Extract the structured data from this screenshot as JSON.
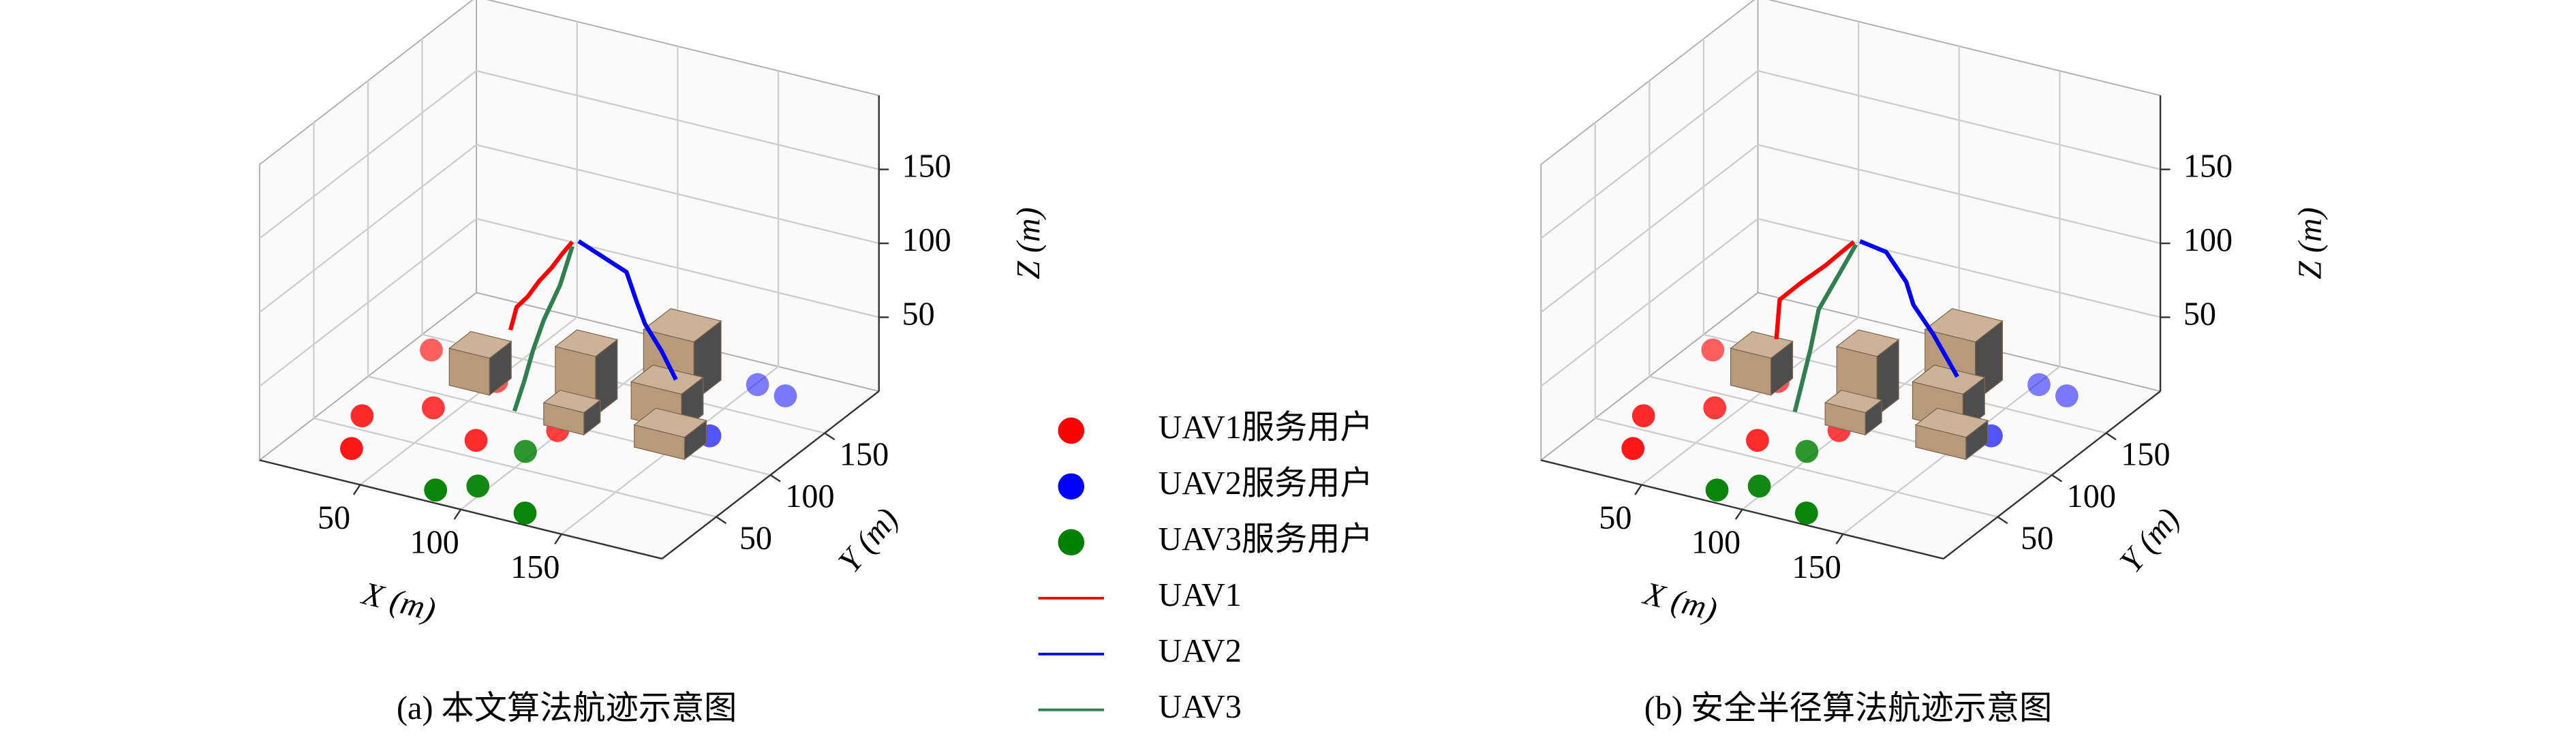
{
  "chart_data": [
    {
      "type": "scatter3d",
      "caption": "(a) 本文算法航迹示意图",
      "xlabel": "X (m)",
      "ylabel": "Y (m)",
      "zlabel": "Z (m)",
      "xlim": [
        0,
        200
      ],
      "ylim": [
        0,
        200
      ],
      "zlim": [
        0,
        200
      ],
      "xticks": [
        50,
        100,
        150
      ],
      "yticks": [
        50,
        100,
        150
      ],
      "zticks": [
        50,
        100,
        150
      ],
      "series": [
        {
          "name": "UAV1服务用户",
          "color": "#ff0000",
          "x": [
            11,
            17,
            40,
            29,
            72,
            98,
            51
          ],
          "y": [
            138,
            63,
            86,
            31,
            66,
            93,
            124
          ]
        },
        {
          "name": "UAV2服务用户",
          "color": "#0000ff",
          "x": [
            151,
            167,
            123,
            158
          ],
          "y": [
            179,
            175,
            151,
            122
          ]
        },
        {
          "name": "UAV3服务用户",
          "color": "#008000",
          "x": [
            96,
            81,
            95,
            126
          ],
          "y": [
            67,
            12,
            25,
            11
          ]
        },
        {
          "name": "UAV1",
          "color": "#ff0000",
          "x": [
            60,
            62,
            66,
            70,
            74,
            77,
            80
          ],
          "y": [
            120,
            122,
            125,
            128,
            132,
            136,
            140
          ],
          "z": [
            40,
            55,
            62,
            72,
            80,
            88,
            95
          ]
        },
        {
          "name": "UAV2",
          "color": "#0000ff",
          "x": [
            82,
            95,
            108,
            112,
            115,
            120,
            125
          ],
          "y": [
            142,
            140,
            138,
            140,
            142,
            148,
            152
          ],
          "z": [
            95,
            90,
            85,
            65,
            50,
            30,
            10
          ]
        },
        {
          "name": "UAV3",
          "color": "#2f7f4f",
          "x": [
            80,
            82,
            82,
            82,
            83,
            83
          ],
          "y": [
            140,
            125,
            110,
            100,
            90,
            81
          ],
          "z": [
            92,
            75,
            60,
            45,
            30,
            15
          ]
        }
      ],
      "obstacles": [
        {
          "x": 35,
          "y": 110,
          "w": 20,
          "d": 20,
          "h": 25
        },
        {
          "x": 110,
          "y": 150,
          "w": 25,
          "d": 25,
          "h": 40
        },
        {
          "x": 85,
          "y": 115,
          "w": 20,
          "d": 20,
          "h": 40
        },
        {
          "x": 90,
          "y": 95,
          "w": 20,
          "d": 15,
          "h": 15
        },
        {
          "x": 120,
          "y": 120,
          "w": 25,
          "d": 20,
          "h": 25
        },
        {
          "x": 135,
          "y": 95,
          "w": 25,
          "d": 20,
          "h": 15
        }
      ]
    },
    {
      "type": "scatter3d",
      "caption": "(b) 安全半径算法航迹示意图",
      "xlabel": "X (m)",
      "ylabel": "Y (m)",
      "zlabel": "Z (m)",
      "xlim": [
        0,
        200
      ],
      "ylim": [
        0,
        200
      ],
      "zlim": [
        0,
        200
      ],
      "xticks": [
        50,
        100,
        150
      ],
      "yticks": [
        50,
        100,
        150
      ],
      "zticks": [
        50,
        100,
        150
      ],
      "series": [
        {
          "color": "#ff0000",
          "x": [
            11,
            17,
            40,
            29,
            72,
            98,
            51
          ],
          "y": [
            138,
            63,
            86,
            31,
            66,
            93,
            124
          ]
        },
        {
          "color": "#0000ff",
          "x": [
            151,
            167,
            123,
            158
          ],
          "y": [
            179,
            175,
            151,
            122
          ]
        },
        {
          "color": "#008000",
          "x": [
            96,
            81,
            95,
            126
          ],
          "y": [
            67,
            12,
            25,
            11
          ]
        },
        {
          "color": "#ff0000",
          "x": [
            55,
            55,
            62,
            70,
            80
          ],
          "y": [
            115,
            118,
            125,
            132,
            140
          ],
          "z": [
            35,
            60,
            70,
            80,
            95
          ]
        },
        {
          "color": "#0000ff",
          "x": [
            82,
            95,
            105,
            108,
            115,
            125
          ],
          "y": [
            142,
            142,
            142,
            143,
            148,
            152
          ],
          "z": [
            95,
            92,
            75,
            60,
            40,
            12
          ]
        },
        {
          "color": "#2f7f4f",
          "x": [
            80,
            78,
            76,
            80,
            82,
            83
          ],
          "y": [
            142,
            130,
            115,
            100,
            88,
            80
          ],
          "z": [
            92,
            78,
            62,
            45,
            28,
            15
          ]
        }
      ],
      "obstacles": [
        {
          "x": 35,
          "y": 110,
          "w": 20,
          "d": 20,
          "h": 25
        },
        {
          "x": 110,
          "y": 150,
          "w": 25,
          "d": 25,
          "h": 40
        },
        {
          "x": 85,
          "y": 115,
          "w": 20,
          "d": 20,
          "h": 40
        },
        {
          "x": 90,
          "y": 95,
          "w": 20,
          "d": 15,
          "h": 15
        },
        {
          "x": 120,
          "y": 120,
          "w": 25,
          "d": 20,
          "h": 25
        },
        {
          "x": 135,
          "y": 95,
          "w": 25,
          "d": 20,
          "h": 15
        }
      ]
    }
  ]
}
